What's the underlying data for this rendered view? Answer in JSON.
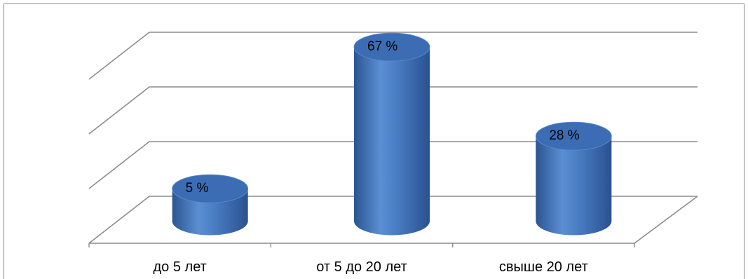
{
  "chart_data": {
    "type": "bar",
    "style": "3d-cylinder",
    "categories": [
      "до 5 лет",
      "от  5 до 20 лет",
      "свыше 20 лет"
    ],
    "values": [
      5,
      67,
      28
    ],
    "data_labels": [
      "5 %",
      "67 %",
      "28 %"
    ],
    "unit": "%",
    "ylim": [
      0,
      75
    ],
    "grid": true,
    "legend": "none",
    "title": "",
    "xlabel": "",
    "ylabel": ""
  },
  "colors": {
    "bar": "#4a7ec4",
    "bar_dark": "#2b5591",
    "bar_top": "#3c6db4",
    "grid": "#8c8c8c"
  }
}
